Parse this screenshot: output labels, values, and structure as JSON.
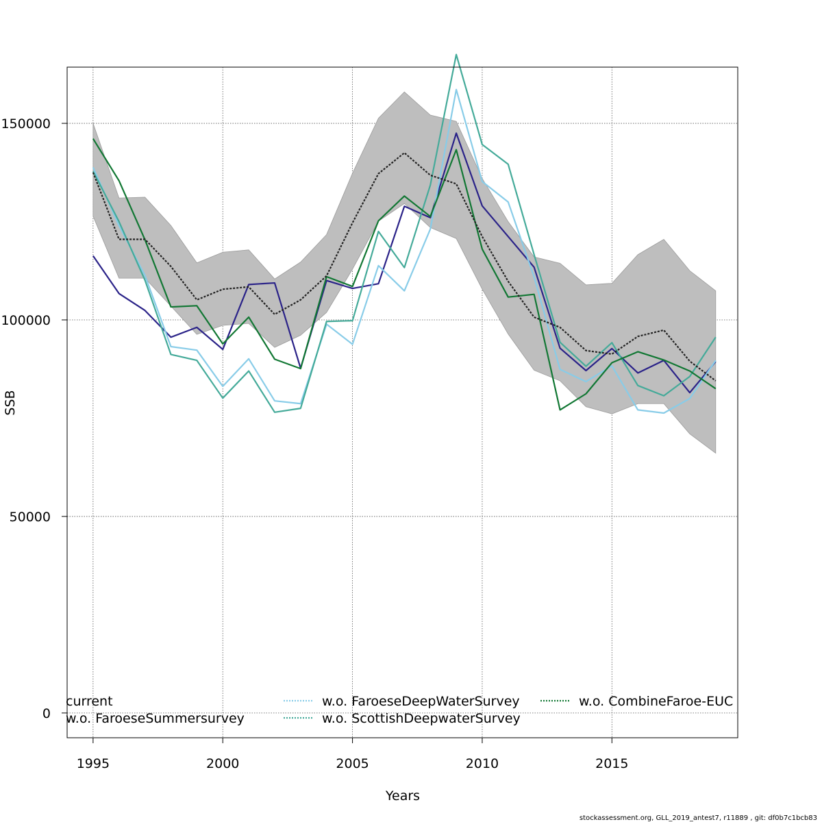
{
  "chart_data": {
    "type": "line",
    "xlabel": "Years",
    "ylabel": "SSB",
    "xlim": [
      1994.0,
      2019.85
    ],
    "ylim": [
      -6300,
      164300
    ],
    "x_ticks": [
      1995,
      2000,
      2005,
      2010,
      2015
    ],
    "y_ticks": [
      0,
      50000,
      100000,
      150000
    ],
    "x_tick_labels": [
      "1995",
      "2000",
      "2005",
      "2010",
      "2015"
    ],
    "y_tick_labels": [
      "0",
      "50000",
      "100000",
      "150000"
    ],
    "grid": true,
    "x": [
      1995,
      1996,
      1997,
      1998,
      1999,
      2000,
      2001,
      2002,
      2003,
      2004,
      2005,
      2006,
      2007,
      2008,
      2009,
      2010,
      2011,
      2012,
      2013,
      2014,
      2015,
      2016,
      2017,
      2018,
      2019
    ],
    "band": {
      "upper": [
        150000,
        131000,
        131200,
        124000,
        114500,
        117200,
        117800,
        110400,
        114700,
        121700,
        137300,
        151300,
        158000,
        152100,
        150500,
        136000,
        125000,
        116000,
        114400,
        108900,
        109300,
        116600,
        120500,
        112500,
        107400
      ],
      "lower": [
        126400,
        110600,
        110600,
        103500,
        96300,
        98600,
        99100,
        93000,
        96100,
        101900,
        112900,
        125100,
        129600,
        123500,
        120700,
        107800,
        96400,
        87200,
        84500,
        77900,
        76100,
        78700,
        78700,
        71000,
        66100
      ],
      "color": "#bebebe"
    },
    "series": [
      {
        "name": "current",
        "color": "#222222",
        "dashed": true,
        "values": [
          137500,
          120500,
          120500,
          113600,
          105100,
          107800,
          108400,
          101400,
          105100,
          111200,
          124700,
          137200,
          142500,
          136800,
          134600,
          121200,
          109800,
          100700,
          98100,
          92200,
          91300,
          95800,
          97400,
          89500,
          84500
        ]
      },
      {
        "name": "w.o. FaroeseSummersurvey",
        "color": "#2a2288",
        "dashed": false,
        "values": [
          116300,
          106700,
          102400,
          95600,
          98100,
          92500,
          109000,
          109400,
          87700,
          110000,
          108000,
          109200,
          128900,
          126000,
          147500,
          129000,
          121200,
          113400,
          92800,
          87100,
          92700,
          86500,
          89700,
          81500,
          89400
        ]
      },
      {
        "name": "w.o. FaroeseDeepWaterSurvey",
        "color": "#88cce8",
        "dashed": false,
        "values": [
          138800,
          124000,
          111300,
          93200,
          92300,
          83100,
          90100,
          79400,
          78700,
          98900,
          93800,
          113800,
          107400,
          123100,
          158600,
          135200,
          130000,
          110900,
          87400,
          84300,
          88300,
          77100,
          76300,
          80000,
          89700
        ]
      },
      {
        "name": "w.o. ScottishDeepwaterSurvey",
        "color": "#44aa99",
        "dashed": false,
        "values": [
          137800,
          125000,
          110100,
          91200,
          89700,
          80100,
          87000,
          76500,
          77500,
          99600,
          99800,
          122500,
          113300,
          134300,
          167500,
          144600,
          139600,
          116600,
          94300,
          88200,
          94200,
          83300,
          80700,
          85600,
          95600
        ]
      },
      {
        "name": "w.o. CombineFaroe-EUC",
        "color": "#117733",
        "dashed": false,
        "values": [
          146100,
          135400,
          120400,
          103300,
          103600,
          93900,
          100700,
          90000,
          87600,
          111000,
          108500,
          125200,
          131500,
          126300,
          143300,
          118000,
          105800,
          106500,
          77100,
          81200,
          89100,
          91900,
          89800,
          87000,
          82500
        ]
      }
    ],
    "legend": {
      "placement": "bottom",
      "labels": [
        "current",
        "w.o. FaroeseSummersurvey",
        "w.o. FaroeseDeepWaterSurvey",
        "w.o. ScottishDeepwaterSurvey",
        "w.o. CombineFaroe-EUC"
      ]
    }
  },
  "footer": {
    "credit": "stockassessment.org, GLL_2019_antest7, r11889 , git: df0b7c1bcb83"
  }
}
